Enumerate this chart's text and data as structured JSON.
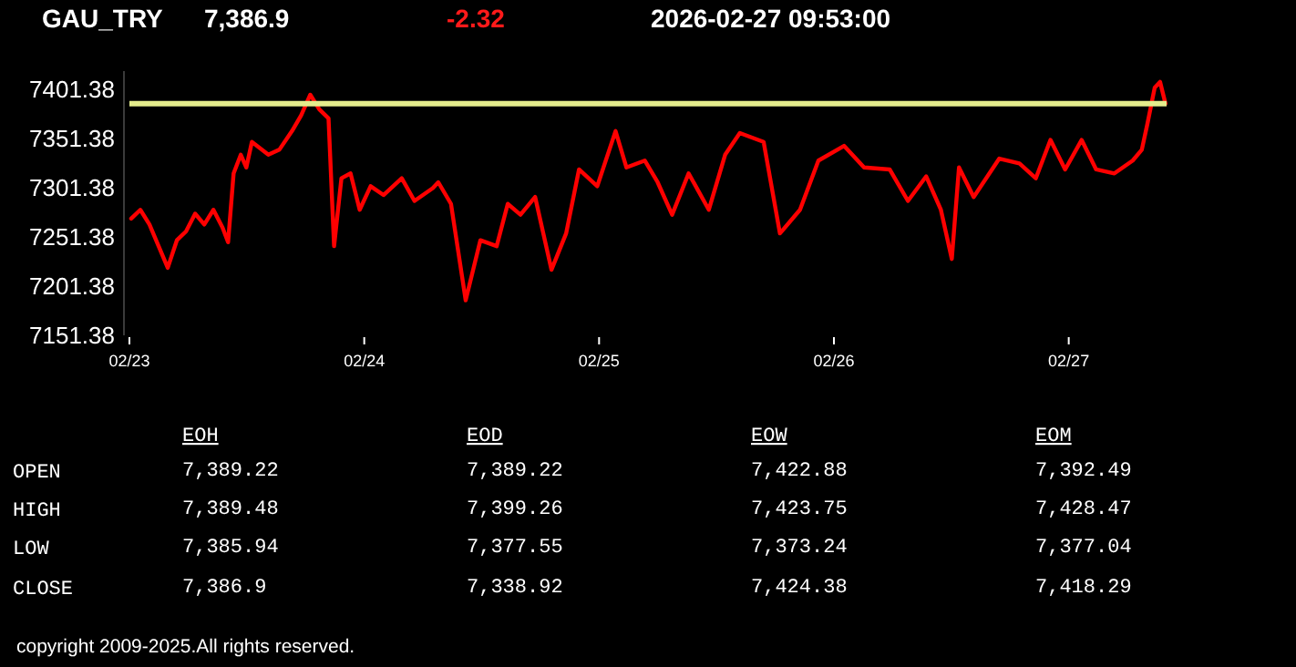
{
  "chart_data": [
    {
      "type": "line",
      "title": "GAU_TRY",
      "annotations": [
        "7,386.9",
        "-2.32",
        "2026-02-27   09:53:00"
      ],
      "x": [
        "2026-02-23T00:11",
        "2026-02-23T01:07",
        "2026-02-23T02:03",
        "2026-02-23T02:59",
        "2026-02-23T03:55",
        "2026-02-23T04:51",
        "2026-02-23T05:47",
        "2026-02-23T06:43",
        "2026-02-23T07:39",
        "2026-02-23T08:35",
        "2026-02-23T09:31",
        "2026-02-23T10:05",
        "2026-02-23T10:39",
        "2026-02-23T11:23",
        "2026-02-23T11:57",
        "2026-02-23T12:31",
        "2026-02-23T14:12",
        "2026-02-23T15:19",
        "2026-02-23T16:37",
        "2026-02-23T17:33",
        "2026-02-23T18:29",
        "2026-02-23T19:25",
        "2026-02-23T20:21",
        "2026-02-23T20:55",
        "2026-02-23T21:40",
        "2026-02-23T22:36",
        "2026-02-23T23:32",
        "2026-02-24T00:39",
        "2026-02-24T01:58",
        "2026-02-24T03:50",
        "2026-02-24T05:08",
        "2026-02-24T07:00",
        "2026-02-24T07:34",
        "2026-02-24T08:52",
        "2026-02-24T10:22",
        "2026-02-24T11:52",
        "2026-02-24T13:32",
        "2026-02-24T14:40",
        "2026-02-24T15:58",
        "2026-02-24T17:28",
        "2026-02-24T19:08",
        "2026-02-24T20:38",
        "2026-02-24T21:57",
        "2026-02-24T23:49",
        "2026-02-25T01:41",
        "2026-02-25T02:48",
        "2026-02-25T04:40",
        "2026-02-25T05:59",
        "2026-02-25T07:28",
        "2026-02-25T09:09",
        "2026-02-25T11:13",
        "2026-02-25T12:53",
        "2026-02-25T14:23",
        "2026-02-25T16:49",
        "2026-02-25T18:29",
        "2026-02-25T20:32",
        "2026-02-25T22:25",
        "2026-02-26T01:02",
        "2026-02-26T03:05",
        "2026-02-26T05:42",
        "2026-02-26T07:34",
        "2026-02-26T09:26",
        "2026-02-26T10:56",
        "2026-02-26T12:03",
        "2026-02-26T12:47",
        "2026-02-26T14:17",
        "2026-02-26T16:54",
        "2026-02-26T18:58",
        "2026-02-26T20:38",
        "2026-02-26T22:08",
        "2026-02-26T23:38",
        "2026-02-27T01:19",
        "2026-02-27T02:48",
        "2026-02-27T04:40",
        "2026-02-27T06:32",
        "2026-02-27T07:28",
        "2026-02-27T08:02",
        "2026-02-27T08:47",
        "2026-02-27T09:20",
        "2026-02-27T09:53"
      ],
      "series": [
        {
          "color": "#ff0000",
          "values": [
            7270,
            7279,
            7264,
            7242,
            7220,
            7248,
            7257,
            7275,
            7264,
            7279,
            7261,
            7246,
            7316,
            7335,
            7322,
            7348,
            7335,
            7340,
            7359,
            7375,
            7396,
            7381,
            7372,
            7242,
            7311,
            7316,
            7279,
            7303,
            7294,
            7311,
            7288,
            7301,
            7307,
            7285,
            7187,
            7248,
            7242,
            7285,
            7274,
            7292,
            7218,
            7255,
            7320,
            7303,
            7359,
            7322,
            7329,
            7307,
            7274,
            7316,
            7279,
            7335,
            7357,
            7348,
            7255,
            7279,
            7329,
            7344,
            7322,
            7320,
            7288,
            7313,
            7279,
            7229,
            7322,
            7292,
            7331,
            7326,
            7311,
            7350,
            7320,
            7350,
            7320,
            7316,
            7329,
            7340,
            7366,
            7403,
            7409,
            7387
          ]
        }
      ],
      "xlim": [
        "2026-02-23T00:00",
        "2026-02-27T10:00"
      ],
      "xticks": [
        {
          "value": "2026-02-23",
          "label": "02/23"
        },
        {
          "value": "2026-02-24",
          "label": "02/24"
        },
        {
          "value": "2026-02-25",
          "label": "02/25"
        },
        {
          "value": "2026-02-26",
          "label": "02/26"
        },
        {
          "value": "2026-02-27",
          "label": "02/27"
        }
      ],
      "ylim": [
        7151.38,
        7420
      ],
      "yticks": [
        7151.38,
        7201.38,
        7251.38,
        7301.38,
        7351.38,
        7401.38
      ],
      "ref_lines": [
        {
          "axis": "y",
          "value": 7386.9,
          "color": "#e4ec8c"
        }
      ],
      "line_style": "solid"
    },
    {
      "type": "other",
      "categories": [
        "EOH",
        "EOD",
        "EOW",
        "EOM"
      ],
      "y_categories": [
        "OPEN",
        "HIGH",
        "LOW",
        "CLOSE"
      ],
      "cell_labels": [
        [
          "7,389.22",
          "7,389.22",
          "7,422.88",
          "7,392.49"
        ],
        [
          "7,389.48",
          "7,399.26",
          "7,423.75",
          "7,428.47"
        ],
        [
          "7,385.94",
          "7,377.55",
          "7,373.24",
          "7,377.04"
        ],
        [
          "7,386.9",
          "7,338.92",
          "7,424.38",
          "7,418.29"
        ]
      ],
      "annotations": [
        "copyright 2009-2025.All rights reserved."
      ]
    }
  ]
}
